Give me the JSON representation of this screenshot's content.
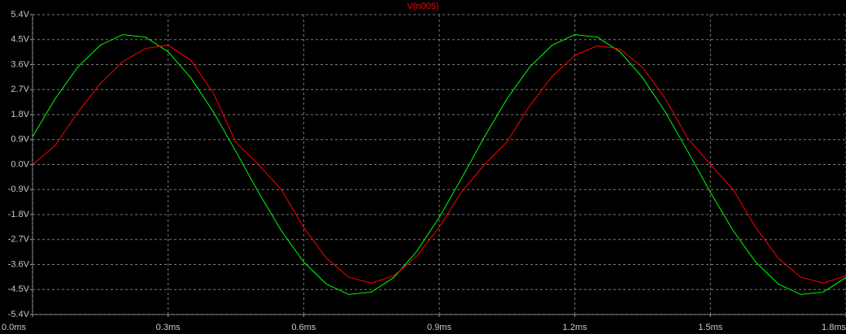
{
  "chart_data": {
    "type": "line",
    "x": [
      0,
      0.05,
      0.1,
      0.15,
      0.2,
      0.25,
      0.3,
      0.35,
      0.4,
      0.45,
      0.5,
      0.55,
      0.6,
      0.65,
      0.7,
      0.75,
      0.8,
      0.85,
      0.9,
      0.95,
      1.0,
      1.05,
      1.1,
      1.15,
      1.2,
      1.25,
      1.3,
      1.35,
      1.4,
      1.45,
      1.5,
      1.55,
      1.6,
      1.65,
      1.7,
      1.75,
      1.8
    ],
    "series": [
      {
        "color": "#00ff00",
        "values": [
          1.0,
          2.37,
          3.51,
          4.3,
          4.68,
          4.59,
          4.06,
          3.13,
          1.9,
          0.47,
          -1.0,
          -2.37,
          -3.51,
          -4.3,
          -4.68,
          -4.59,
          -4.06,
          -3.13,
          -1.9,
          -0.47,
          1.0,
          2.37,
          3.51,
          4.3,
          4.68,
          4.59,
          4.06,
          3.13,
          1.9,
          0.47,
          -1.0,
          -2.37,
          -3.51,
          -4.3,
          -4.68,
          -4.59,
          -4.06
        ]
      },
      {
        "name": "V(n005)",
        "color": "#ff0000",
        "values": [
          0,
          0.68,
          1.88,
          2.92,
          3.71,
          4.18,
          4.3,
          3.76,
          2.58,
          0.8,
          0,
          -0.89,
          -2.26,
          -3.37,
          -4.06,
          -4.27,
          -4.0,
          -3.3,
          -2.25,
          -0.97,
          0,
          0.82,
          2.11,
          3.18,
          3.93,
          4.28,
          4.16,
          3.5,
          2.38,
          0.94,
          0,
          -0.89,
          -2.26,
          -3.37,
          -4.06,
          -4.27,
          -4.0
        ]
      }
    ],
    "xlim": [
      0,
      1.8
    ],
    "xticks": [
      {
        "value": 0,
        "label": "0.0ms"
      },
      {
        "value": 0.3,
        "label": "0.3ms"
      },
      {
        "value": 0.6,
        "label": "0.6ms"
      },
      {
        "value": 0.9,
        "label": "0.9ms"
      },
      {
        "value": 1.2,
        "label": "1.2ms"
      },
      {
        "value": 1.5,
        "label": "1.5ms"
      },
      {
        "value": 1.8,
        "label": "1.8ms"
      }
    ],
    "ylim": [
      -5.4,
      5.4
    ],
    "yticks": [
      {
        "value": 5.4,
        "label": "5.4V"
      },
      {
        "value": 4.5,
        "label": "4.5V"
      },
      {
        "value": 3.6,
        "label": "3.6V"
      },
      {
        "value": 2.7,
        "label": "2.7V"
      },
      {
        "value": 1.8,
        "label": "1.8V"
      },
      {
        "value": 0.9,
        "label": "0.9V"
      },
      {
        "value": 0,
        "label": "0.0V"
      },
      {
        "value": -0.9,
        "label": "-0.9V"
      },
      {
        "value": -1.8,
        "label": "-1.8V"
      },
      {
        "value": -2.7,
        "label": "-2.7V"
      },
      {
        "value": -3.6,
        "label": "-3.6V"
      },
      {
        "value": -4.5,
        "label": "-4.5V"
      },
      {
        "value": -5.4,
        "label": "-5.4V"
      }
    ],
    "grid": true
  }
}
